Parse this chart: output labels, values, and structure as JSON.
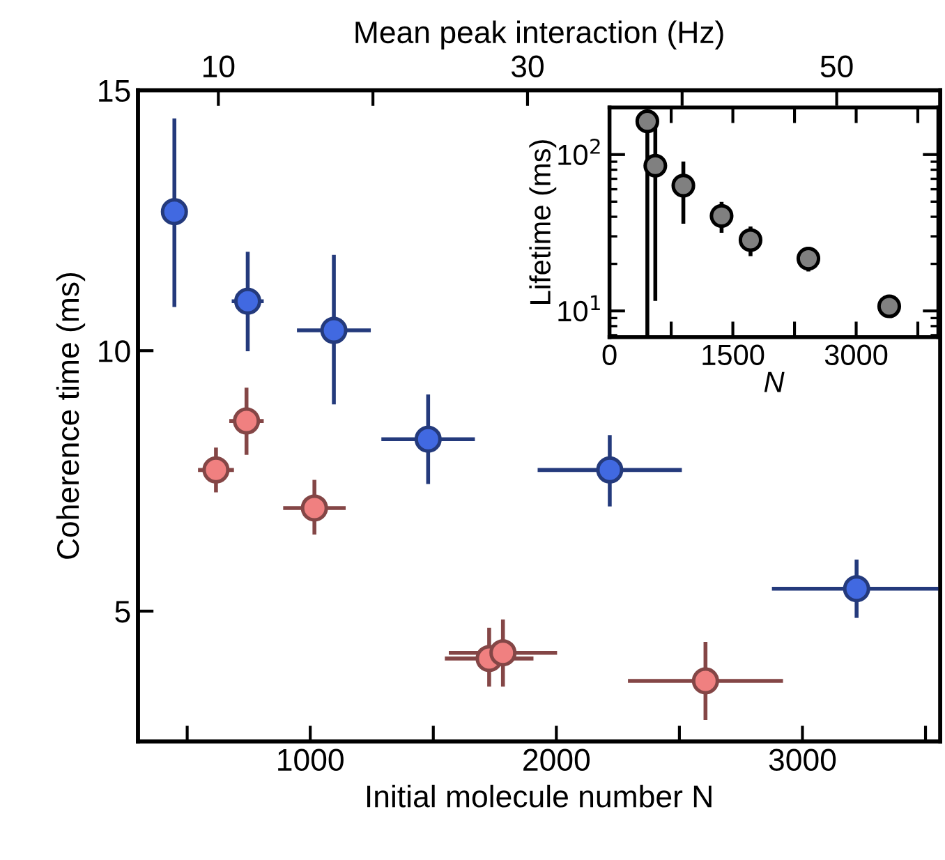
{
  "chart_data": [
    {
      "type": "scatter",
      "xlabel": "Initial molecule number N",
      "ylabel": "Coherence time (ms)",
      "x2label": "Mean peak interaction (Hz)",
      "xlim": [
        300,
        3560
      ],
      "xticks": [
        {
          "value": 500,
          "label": null
        },
        1000,
        {
          "value": 1500,
          "label": null
        },
        2000,
        {
          "value": 2500,
          "label": null
        },
        3000,
        {
          "value": 3500,
          "label": null
        }
      ],
      "ylim": [
        2.5,
        15
      ],
      "yticks": [
        5,
        10,
        15
      ],
      "x2lim": [
        4.8,
        56.7
      ],
      "x2ticks": [
        10,
        {
          "value": 20,
          "label": null
        },
        30,
        {
          "value": 40,
          "label": null
        },
        50
      ],
      "marker": "circle",
      "grid": false,
      "legend": false,
      "series": [
        {
          "color": "#4169e1",
          "x": [
            448,
            746,
            1096,
            1479,
            2217,
            3220
          ],
          "values": [
            12.67,
            10.95,
            10.39,
            8.3,
            7.71,
            5.43
          ],
          "errors": [
            [
              10.84,
              14.46
            ],
            [
              9.99,
              11.9
            ],
            [
              8.97,
              11.84
            ],
            [
              7.44,
              9.16
            ],
            [
              7.01,
              8.38
            ],
            [
              4.87,
              5.99
            ]
          ],
          "xerrors": [
            50,
            65,
            150,
            190,
            [
              1924,
              2510
            ],
            [
              2876,
              3560
            ]
          ]
        },
        {
          "color": "#f08080",
          "x": [
            617,
            741,
            1017,
            1727,
            1783,
            2606
          ],
          "values": [
            7.71,
            8.65,
            6.98,
            4.09,
            4.2,
            3.66
          ],
          "errors": [
            [
              7.28,
              8.14
            ],
            [
              8.0,
              9.29
            ],
            [
              6.47,
              7.52
            ],
            [
              3.55,
              4.68
            ],
            [
              3.55,
              4.84
            ],
            [
              2.91,
              4.41
            ]
          ],
          "xerrors": [
            73,
            70,
            127,
            180,
            220,
            315
          ]
        }
      ]
    },
    {
      "type": "scatter",
      "xlabel": "N",
      "ylabel": "Lifetime (ms)",
      "log": "y",
      "xlim": [
        0,
        4000
      ],
      "xticks": [
        0,
        {
          "value": 750,
          "label": null
        },
        1500,
        {
          "value": 2250,
          "label": null
        },
        3000,
        {
          "value": 3750,
          "label": null
        }
      ],
      "ylim": [
        6.8,
        200
      ],
      "yticks": [
        {
          "value": 10,
          "label": "10$^{1}$"
        },
        {
          "value": 100,
          "label": "10$^{2}$"
        }
      ],
      "marker": "circle",
      "grid": false,
      "legend": false,
      "series": [
        {
          "color": "#808080",
          "x": [
            460,
            557,
            898,
            1363,
            1715,
            2419,
            3402
          ],
          "values": [
            163,
            84.9,
            63.3,
            40.5,
            28.4,
            21.6,
            10.7
          ],
          "errors": [
            [
              6.8,
              163
            ],
            [
              11.6,
              159
            ],
            [
              36.1,
              90.3
            ],
            [
              31.6,
              49.8
            ],
            [
              22.4,
              34.7
            ],
            [
              17.9,
              25.7
            ],
            null
          ],
          "xerrors": [
            null,
            null,
            null,
            null,
            90,
            128,
            136
          ]
        }
      ]
    }
  ]
}
